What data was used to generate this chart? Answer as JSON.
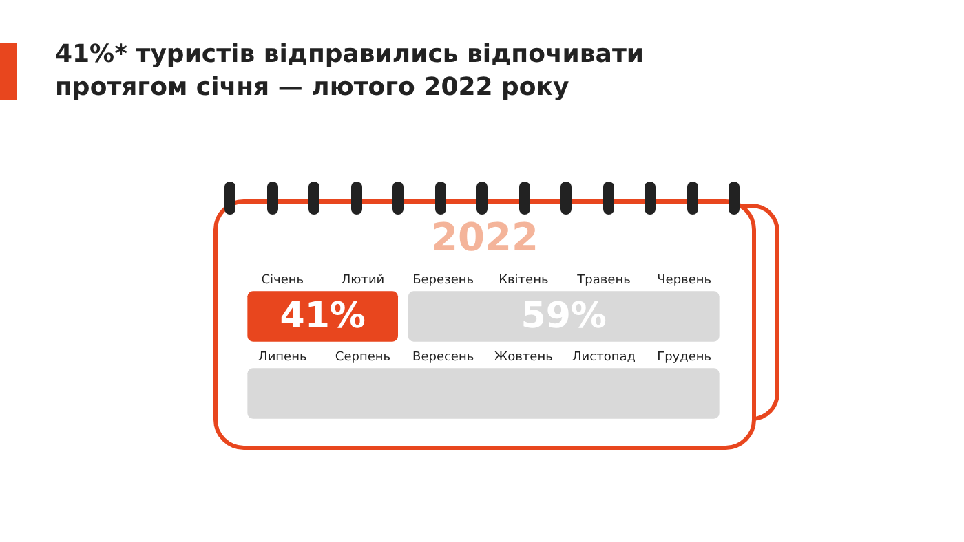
{
  "chart_data": {
    "type": "other",
    "title": "41%* туристів відправились відпочивати протягом січня — лютого 2022 року",
    "subtitle": "2022",
    "categories": [
      "Січень",
      "Лютий",
      "Березень",
      "Квітень",
      "Травень",
      "Червень",
      "Липень",
      "Серпень",
      "Вересень",
      "Жовтень",
      "Листопад",
      "Грудень"
    ],
    "values": [
      41,
      null,
      null,
      59,
      null,
      null,
      null,
      null,
      null,
      null,
      null,
      null
    ],
    "value_labels": [
      "41%",
      null,
      null,
      "59%",
      null,
      null,
      null,
      null,
      null,
      null,
      null,
      null
    ],
    "colors": [
      "#e8461e",
      "#e8461e",
      "#d9d9d9",
      "#d9d9d9",
      "#d9d9d9",
      "#d9d9d9",
      "#d9d9d9",
      "#d9d9d9",
      "#d9d9d9",
      "#d9d9d9",
      "#d9d9d9",
      "#d9d9d9"
    ]
  }
}
